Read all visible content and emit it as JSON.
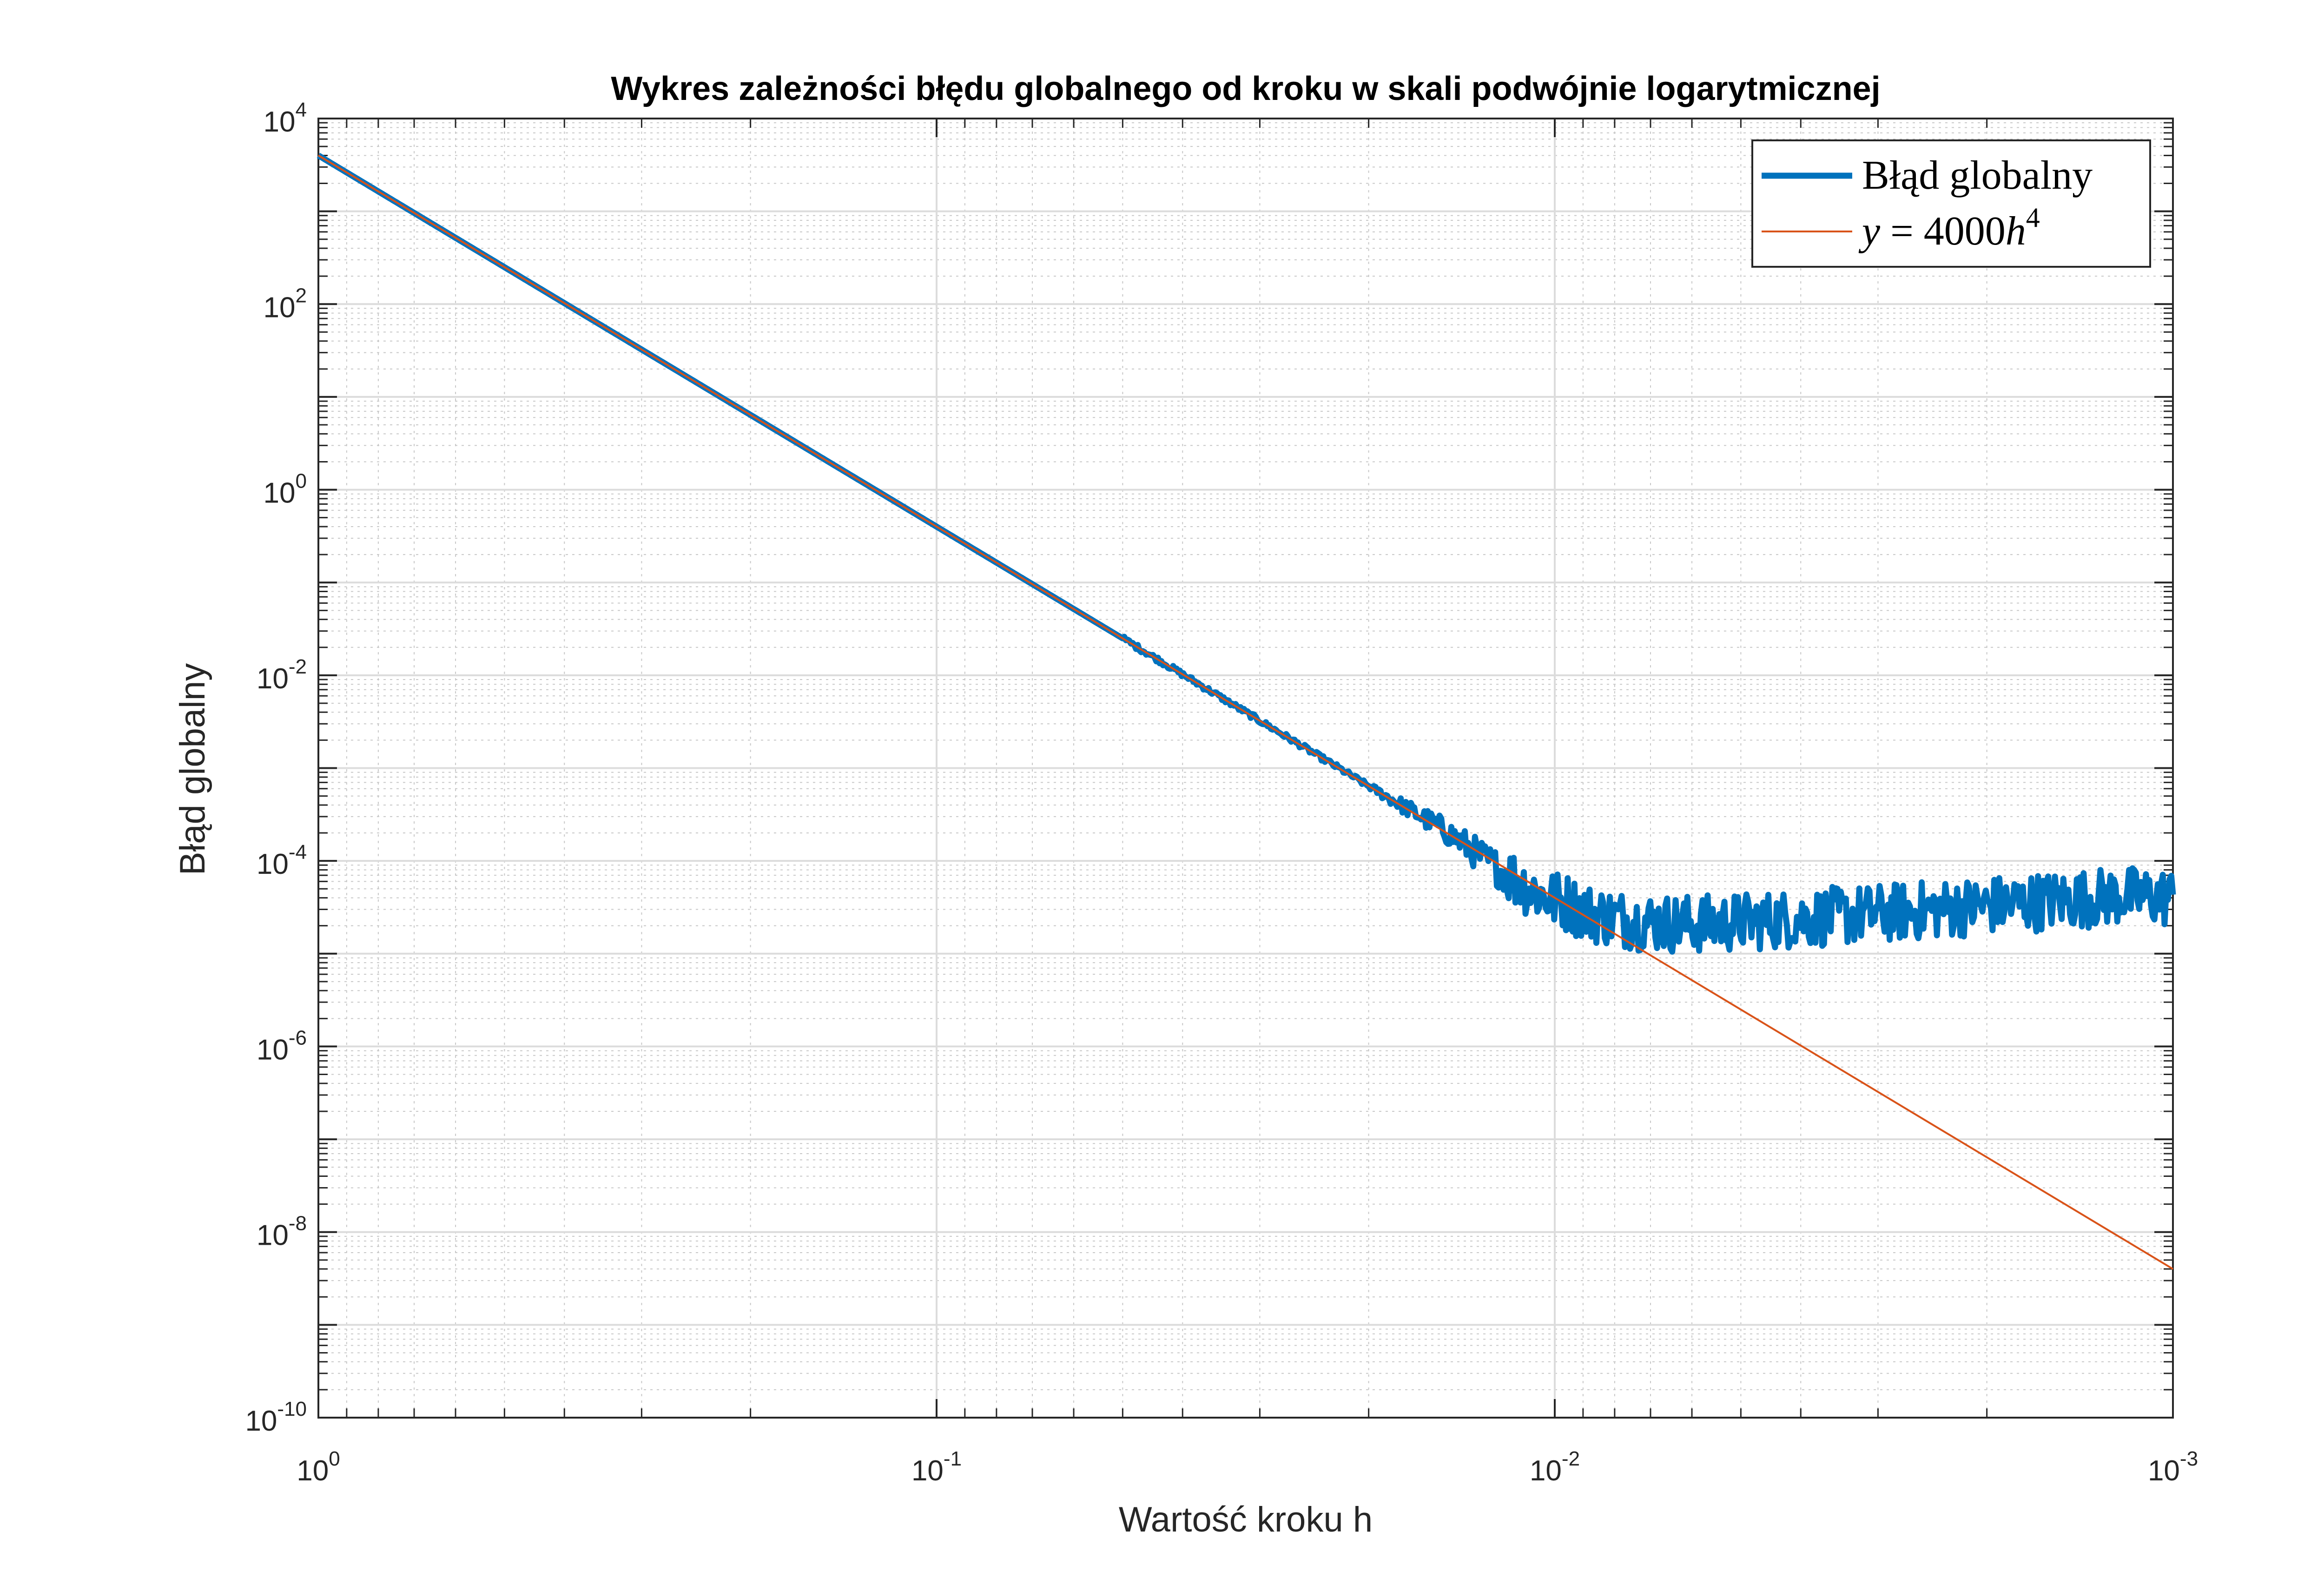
{
  "chart_data": {
    "type": "line",
    "title": "Wykres zależności błędu globalnego od kroku w skali podwójnie logarytmicznej",
    "xlabel": "Wartość kroku h",
    "ylabel": "Błąd globalny",
    "xscale": "log",
    "yscale": "log",
    "xlim": [
      0.001,
      1
    ],
    "ylim": [
      1e-10,
      10000
    ],
    "x_direction": "reverse",
    "grid": true,
    "minor_grid": true,
    "legend_position": "top-right",
    "x_ticks": [
      {
        "value": 1,
        "base": "10",
        "exp": "0"
      },
      {
        "value": 0.1,
        "base": "10",
        "exp": "-1"
      },
      {
        "value": 0.01,
        "base": "10",
        "exp": "-2"
      },
      {
        "value": 0.001,
        "base": "10",
        "exp": "-3"
      }
    ],
    "y_ticks": [
      {
        "value": 1e-10,
        "base": "10",
        "exp": "-10"
      },
      {
        "value": 1e-08,
        "base": "10",
        "exp": "-8"
      },
      {
        "value": 1e-06,
        "base": "10",
        "exp": "-6"
      },
      {
        "value": 0.0001,
        "base": "10",
        "exp": "-4"
      },
      {
        "value": 0.01,
        "base": "10",
        "exp": "-2"
      },
      {
        "value": 1,
        "base": "10",
        "exp": "0"
      },
      {
        "value": 100,
        "base": "10",
        "exp": "2"
      },
      {
        "value": 10000,
        "base": "10",
        "exp": "4"
      }
    ],
    "series": [
      {
        "name": "Błąd globalny",
        "color": "#0072BD",
        "style": "thick",
        "points": [
          [
            1.0,
            4000
          ],
          [
            0.5,
            250
          ],
          [
            0.3,
            32.4
          ],
          [
            0.2,
            6.4
          ],
          [
            0.1,
            0.4
          ],
          [
            0.05,
            0.025
          ],
          [
            0.03,
            0.00324
          ],
          [
            0.02,
            0.00064
          ],
          [
            0.015,
            0.00021
          ],
          [
            0.0126,
            9e-05
          ],
          [
            0.0112,
            5.5e-05
          ],
          [
            0.0103,
            4e-05
          ],
          [
            0.0095,
            3.5e-05
          ],
          [
            0.0089,
            2.8e-05
          ],
          [
            0.0085,
            2.6e-05
          ],
          [
            0.0079,
            2.4e-05
          ],
          [
            0.0071,
            2.2e-05
          ],
          [
            0.0063,
            2.1e-05
          ],
          [
            0.0056,
            2.1e-05
          ],
          [
            0.005,
            2.2e-05
          ],
          [
            0.004,
            2.4e-05
          ],
          [
            0.003,
            2.7e-05
          ],
          [
            0.002,
            3.3e-05
          ],
          [
            0.0015,
            3.8e-05
          ],
          [
            0.0012,
            4.2e-05
          ],
          [
            0.001,
            4e-05
          ]
        ]
      },
      {
        "name": "y = 4000h^4",
        "color": "#D95319",
        "style": "thin",
        "formula": "4000*h^4",
        "points": [
          [
            1.0,
            4000
          ],
          [
            0.001,
            4e-09
          ]
        ]
      }
    ],
    "legend": {
      "entry1": "Błąd globalny",
      "entry2_prefix": "y",
      "entry2_eq": " = 4000",
      "entry2_var": "h",
      "entry2_exp": "4"
    }
  }
}
